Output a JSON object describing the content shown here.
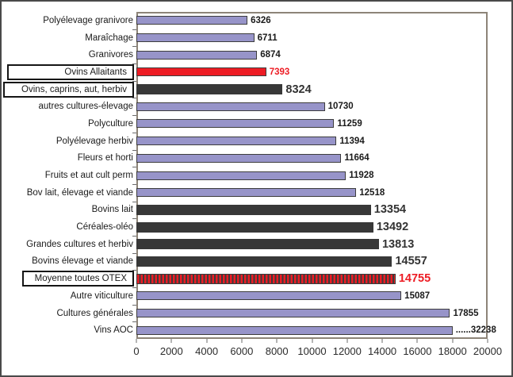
{
  "colors": {
    "bar_purple": "#9794c9",
    "bar_dark": "#383838",
    "bar_red": "#ed1c24",
    "value_red": "#ed1c24",
    "plot_border": "#8d8478",
    "outer_border": "#4a4a4a"
  },
  "chart_data": {
    "type": "bar",
    "orientation": "horizontal",
    "title": "",
    "xlabel": "",
    "ylabel": "",
    "grid": false,
    "legend": false,
    "x_axis": {
      "min": 0,
      "max": 20000,
      "tick_step": 2000,
      "tick_labels": [
        "0",
        "2000",
        "4000",
        "6000",
        "8000",
        "10000",
        "12000",
        "14000",
        "16000",
        "18000",
        "20000"
      ]
    },
    "categories": [
      "Polyélevage granivore",
      "Maraîchage",
      "Granivores",
      "Ovins Allaitants",
      "Ovins, caprins, aut, herbiv",
      "autres cultures-élevage",
      "Polyculture",
      "Polyélevage herbiv",
      "Fleurs et horti",
      "Fruits et aut cult perm",
      "Bov lait, élevage et viande",
      "Bovins lait",
      "Céréales-oléo",
      "Grandes cultures et herbiv",
      "Bovins élevage et viande",
      "Moyenne toutes OTEX",
      "Autre viticulture",
      "Cultures générales",
      "Vins AOC"
    ],
    "values": [
      6326,
      6711,
      6874,
      7393,
      8324,
      10730,
      11259,
      11394,
      11664,
      11928,
      12518,
      13354,
      13492,
      13813,
      14557,
      14755,
      15087,
      17855,
      32238
    ],
    "bars": [
      {
        "label": "Polyélevage granivore",
        "value": 6326,
        "value_label": "6326",
        "bar_length": 6326,
        "bar_style": "purple",
        "value_style": "normal",
        "boxed": false
      },
      {
        "label": "Maraîchage",
        "value": 6711,
        "value_label": "6711",
        "bar_length": 6711,
        "bar_style": "purple",
        "value_style": "normal",
        "boxed": false
      },
      {
        "label": "Granivores",
        "value": 6874,
        "value_label": "6874",
        "bar_length": 6874,
        "bar_style": "purple",
        "value_style": "normal",
        "boxed": false
      },
      {
        "label": "Ovins Allaitants",
        "value": 7393,
        "value_label": "7393",
        "bar_length": 7393,
        "bar_style": "red",
        "value_style": "red",
        "boxed": true,
        "label_box_width": 160
      },
      {
        "label": "Ovins, caprins, aut, herbiv",
        "value": 8324,
        "value_label": "8324",
        "bar_length": 8324,
        "bar_style": "dark",
        "value_style": "large",
        "boxed": true,
        "label_box_width": 165
      },
      {
        "label": "autres cultures-élevage",
        "value": 10730,
        "value_label": "10730",
        "bar_length": 10730,
        "bar_style": "purple",
        "value_style": "normal",
        "boxed": false
      },
      {
        "label": "Polyculture",
        "value": 11259,
        "value_label": "11259",
        "bar_length": 11259,
        "bar_style": "purple",
        "value_style": "normal",
        "boxed": false
      },
      {
        "label": "Polyélevage herbiv",
        "value": 11394,
        "value_label": "11394",
        "bar_length": 11394,
        "bar_style": "purple",
        "value_style": "normal",
        "boxed": false
      },
      {
        "label": "Fleurs et horti",
        "value": 11664,
        "value_label": "11664",
        "bar_length": 11664,
        "bar_style": "purple",
        "value_style": "normal",
        "boxed": false
      },
      {
        "label": "Fruits et aut cult perm",
        "value": 11928,
        "value_label": "11928",
        "bar_length": 11928,
        "bar_style": "purple",
        "value_style": "normal",
        "boxed": false
      },
      {
        "label": "Bov lait, élevage et viande",
        "value": 12518,
        "value_label": "12518",
        "bar_length": 12518,
        "bar_style": "purple",
        "value_style": "normal",
        "boxed": false
      },
      {
        "label": "Bovins lait",
        "value": 13354,
        "value_label": "13354",
        "bar_length": 13354,
        "bar_style": "dark",
        "value_style": "large",
        "boxed": false
      },
      {
        "label": "Céréales-oléo",
        "value": 13492,
        "value_label": "13492",
        "bar_length": 13492,
        "bar_style": "dark",
        "value_style": "large",
        "boxed": false
      },
      {
        "label": "Grandes cultures et herbiv",
        "value": 13813,
        "value_label": "13813",
        "bar_length": 13813,
        "bar_style": "dark",
        "value_style": "large",
        "boxed": false
      },
      {
        "label": "Bovins élevage et viande",
        "value": 14557,
        "value_label": "14557",
        "bar_length": 14557,
        "bar_style": "dark",
        "value_style": "large",
        "boxed": false
      },
      {
        "label": "Moyenne toutes OTEX",
        "value": 14755,
        "value_label": "14755",
        "bar_length": 14755,
        "bar_style": "hatched",
        "value_style": "red-large",
        "boxed": true,
        "label_box_width": 141
      },
      {
        "label": "Autre viticulture",
        "value": 15087,
        "value_label": "15087",
        "bar_length": 15087,
        "bar_style": "purple",
        "value_style": "normal",
        "boxed": false
      },
      {
        "label": "Cultures générales",
        "value": 17855,
        "value_label": "17855",
        "bar_length": 17855,
        "bar_style": "purple",
        "value_style": "normal",
        "boxed": false
      },
      {
        "label": "Vins AOC",
        "value": 32238,
        "value_label": "......32238",
        "bar_length": 18000,
        "bar_style": "purple",
        "value_style": "normal",
        "boxed": false
      }
    ]
  }
}
